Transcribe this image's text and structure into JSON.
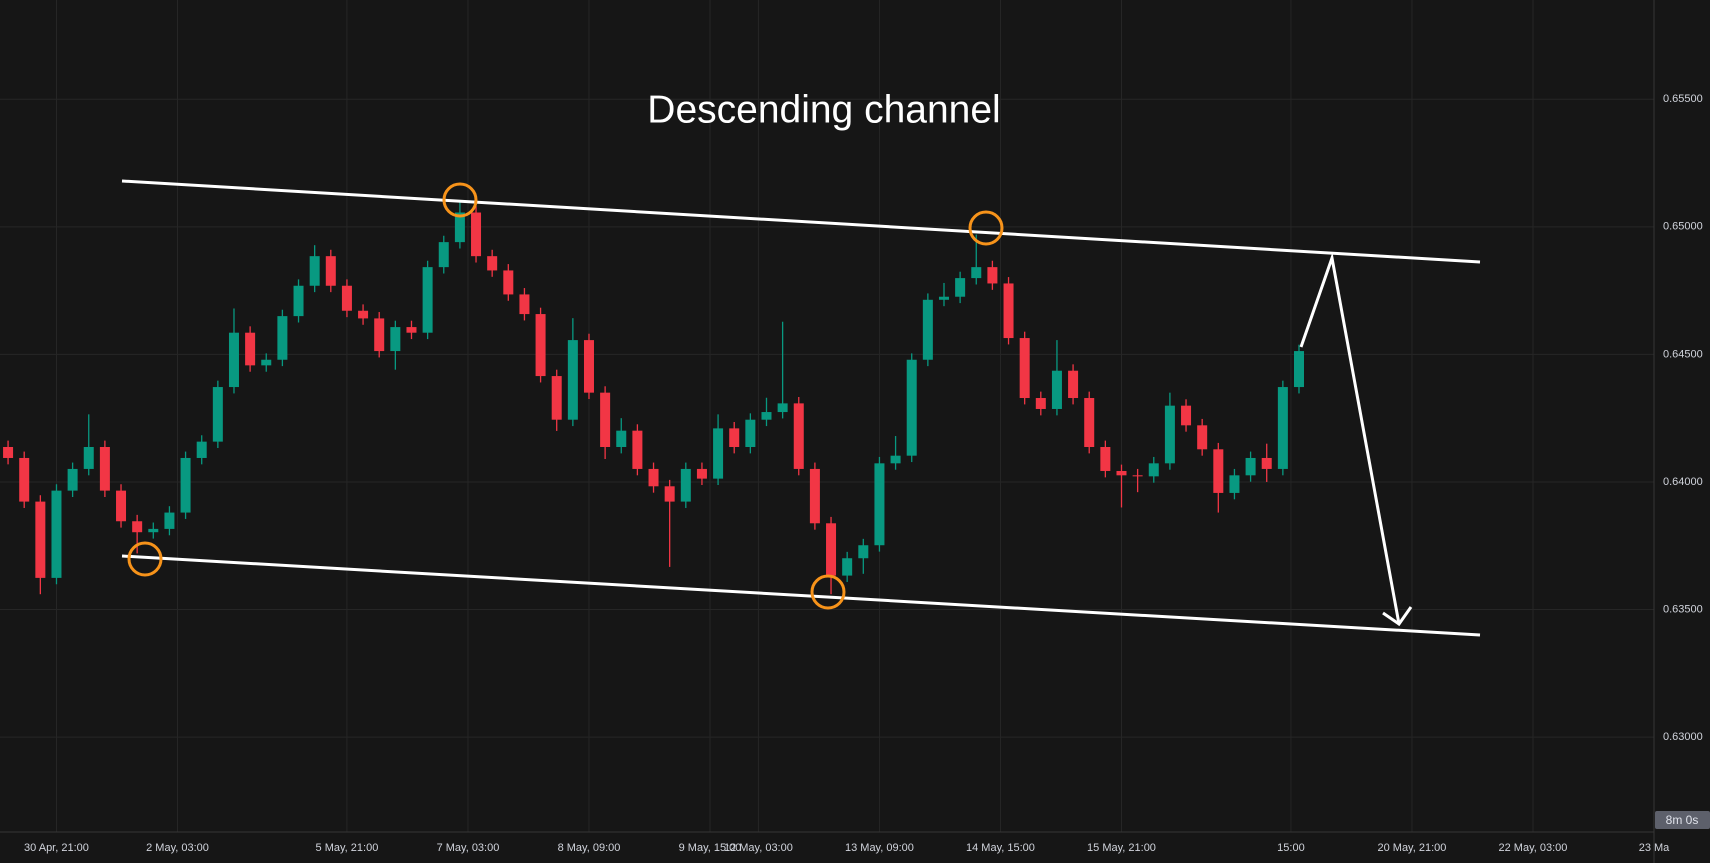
{
  "chart_data": {
    "type": "candlestick",
    "title": "Descending channel",
    "countdown": "8m 0s",
    "x": [
      -12,
      -8,
      -4,
      0,
      4,
      8,
      12,
      16,
      20,
      24,
      28,
      32,
      36,
      40,
      44,
      48,
      52,
      56,
      60,
      64,
      68,
      72,
      76,
      80,
      84,
      88,
      92,
      96,
      100,
      104,
      108,
      112,
      116,
      120,
      124,
      128,
      132,
      136,
      140,
      144,
      148,
      152,
      156,
      160,
      164,
      168,
      172,
      176,
      180,
      184,
      188,
      192,
      196,
      200,
      204,
      208,
      212,
      216,
      220,
      224,
      228,
      232,
      236,
      240,
      244,
      248,
      252,
      256,
      260,
      264,
      268,
      272,
      276,
      280,
      284,
      288,
      292,
      296,
      300,
      304,
      308
    ],
    "open": [
      0.64137,
      0.64094,
      0.63923,
      0.63624,
      0.63966,
      0.64051,
      0.64137,
      0.63966,
      0.63846,
      0.63803,
      0.63816,
      0.6388,
      0.64094,
      0.64158,
      0.64372,
      0.64585,
      0.64457,
      0.64479,
      0.6465,
      0.64769,
      0.64885,
      0.64769,
      0.64671,
      0.64641,
      0.64513,
      0.64607,
      0.64585,
      0.64842,
      0.6494,
      0.65056,
      0.64885,
      0.64829,
      0.64735,
      0.64658,
      0.64415,
      0.64244,
      0.64556,
      0.6435,
      0.64137,
      0.64201,
      0.64051,
      0.63983,
      0.63923,
      0.64051,
      0.64013,
      0.6421,
      0.64137,
      0.64244,
      0.64274,
      0.64308,
      0.64051,
      0.63838,
      0.63633,
      0.63701,
      0.63752,
      0.64073,
      0.64103,
      0.64479,
      0.64714,
      0.64726,
      0.64799,
      0.64842,
      0.64778,
      0.64564,
      0.64329,
      0.64286,
      0.64436,
      0.64329,
      0.64137,
      0.64043,
      0.64026,
      0.64022,
      0.64073,
      0.64299,
      0.64222,
      0.64128,
      0.63957,
      0.64026,
      0.64094,
      0.64051,
      0.64372
    ],
    "high": [
      0.64162,
      0.64119,
      0.63948,
      0.63991,
      0.64076,
      0.64265,
      0.64162,
      0.63991,
      0.63871,
      0.63841,
      0.63905,
      0.64119,
      0.64183,
      0.64397,
      0.6468,
      0.6461,
      0.64504,
      0.64675,
      0.64794,
      0.64928,
      0.6491,
      0.64794,
      0.64696,
      0.64666,
      0.64632,
      0.64632,
      0.64867,
      0.64965,
      0.651,
      0.65081,
      0.6491,
      0.64854,
      0.6476,
      0.64683,
      0.6444,
      0.64642,
      0.64581,
      0.64375,
      0.6425,
      0.64226,
      0.64076,
      0.64008,
      0.64076,
      0.64076,
      0.64265,
      0.64235,
      0.64269,
      0.6433,
      0.64628,
      0.64333,
      0.64076,
      0.63863,
      0.63726,
      0.63777,
      0.64098,
      0.6418,
      0.64504,
      0.64739,
      0.6478,
      0.64824,
      0.6497,
      0.64867,
      0.64803,
      0.64589,
      0.64354,
      0.64556,
      0.64461,
      0.64354,
      0.64162,
      0.64068,
      0.64051,
      0.64098,
      0.6435,
      0.64324,
      0.64247,
      0.64153,
      0.64051,
      0.64119,
      0.6415,
      0.64397,
      0.64538
    ],
    "low": [
      0.64069,
      0.63898,
      0.6356,
      0.63599,
      0.63941,
      0.64026,
      0.63941,
      0.63821,
      0.6372,
      0.63778,
      0.63791,
      0.63855,
      0.64069,
      0.64133,
      0.64347,
      0.64432,
      0.64432,
      0.64454,
      0.64625,
      0.64744,
      0.64744,
      0.64646,
      0.64616,
      0.64488,
      0.6444,
      0.6456,
      0.6456,
      0.64817,
      0.64915,
      0.6486,
      0.64804,
      0.6471,
      0.64633,
      0.6439,
      0.642,
      0.64219,
      0.64325,
      0.6409,
      0.64112,
      0.64026,
      0.63958,
      0.63667,
      0.63898,
      0.63988,
      0.63988,
      0.64112,
      0.64112,
      0.64219,
      0.64249,
      0.64026,
      0.63813,
      0.6356,
      0.63608,
      0.6364,
      0.63727,
      0.64048,
      0.64078,
      0.64454,
      0.64689,
      0.64701,
      0.64774,
      0.64753,
      0.64539,
      0.64304,
      0.64261,
      0.64261,
      0.64304,
      0.64112,
      0.64018,
      0.639,
      0.6396,
      0.63997,
      0.64048,
      0.64197,
      0.64103,
      0.6388,
      0.63932,
      0.64001,
      0.64,
      0.64026,
      0.64347
    ],
    "close": [
      0.64094,
      0.63923,
      0.63624,
      0.63966,
      0.64051,
      0.64137,
      0.63966,
      0.63846,
      0.63803,
      0.63816,
      0.6388,
      0.64094,
      0.64158,
      0.64372,
      0.64585,
      0.64457,
      0.64479,
      0.6465,
      0.64769,
      0.64885,
      0.64769,
      0.64671,
      0.64641,
      0.64513,
      0.64607,
      0.64585,
      0.64842,
      0.6494,
      0.65056,
      0.64885,
      0.64829,
      0.64735,
      0.64658,
      0.64415,
      0.64244,
      0.64556,
      0.6435,
      0.64137,
      0.64201,
      0.64051,
      0.63983,
      0.63923,
      0.64051,
      0.64013,
      0.6421,
      0.64137,
      0.64244,
      0.64274,
      0.64308,
      0.64051,
      0.63838,
      0.63633,
      0.63701,
      0.63752,
      0.64073,
      0.64103,
      0.64479,
      0.64714,
      0.64726,
      0.64799,
      0.64842,
      0.64778,
      0.64564,
      0.64329,
      0.64286,
      0.64436,
      0.64329,
      0.64137,
      0.64043,
      0.64026,
      0.64022,
      0.64073,
      0.64299,
      0.64222,
      0.64128,
      0.63957,
      0.64026,
      0.64094,
      0.64051,
      0.64372,
      0.64513
    ],
    "up_color": "#089981",
    "down_color": "#f23645",
    "xlim": [
      -14,
      396
    ],
    "xticks": [
      {
        "value": 0,
        "label": "30 Apr, 21:00"
      },
      {
        "value": 30,
        "label": "2 May, 03:00"
      },
      {
        "value": 72,
        "label": "5 May, 21:00"
      },
      {
        "value": 102,
        "label": "7 May, 03:00"
      },
      {
        "value": 132,
        "label": "8 May, 09:00"
      },
      {
        "value": 162,
        "label": "9 May, 15:00"
      },
      {
        "value": 174,
        "label": "12 May, 03:00"
      },
      {
        "value": 204,
        "label": "13 May, 09:00"
      },
      {
        "value": 234,
        "label": "14 May, 15:00"
      },
      {
        "value": 264,
        "label": "15 May, 21:00"
      },
      {
        "value": 306,
        "label": "15:00"
      },
      {
        "value": 336,
        "label": "20 May, 21:00"
      },
      {
        "value": 366,
        "label": "22 May, 03:00"
      },
      {
        "value": 396,
        "label": "23 Ma"
      }
    ],
    "ylim": [
      0.62628,
      0.65889
    ],
    "yticks": [
      {
        "value": 0.63,
        "label": "0.63000"
      },
      {
        "value": 0.635,
        "label": "0.63500"
      },
      {
        "value": 0.64,
        "label": "0.64000"
      },
      {
        "value": 0.645,
        "label": "0.64500"
      },
      {
        "value": 0.65,
        "label": "0.65000"
      },
      {
        "value": 0.655,
        "label": "0.65500"
      }
    ],
    "grid": true
  }
}
